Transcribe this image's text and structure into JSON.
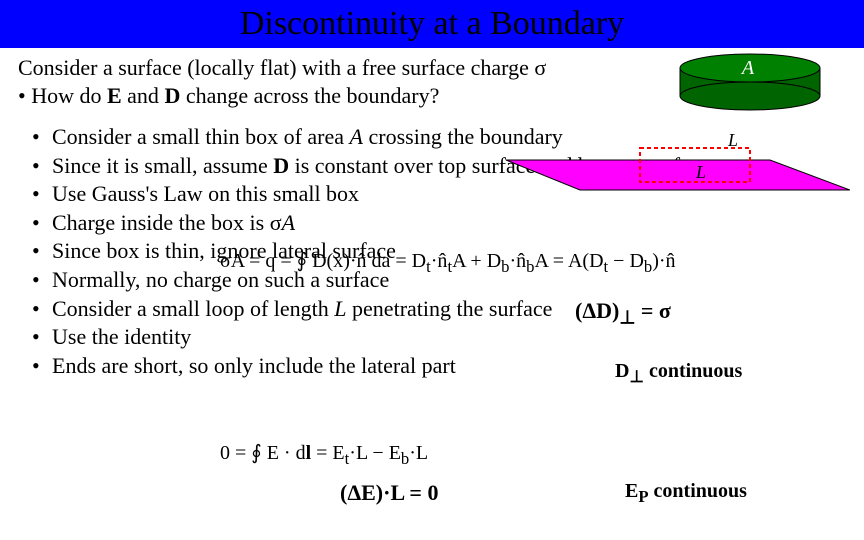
{
  "title": "Discontinuity at a Boundary",
  "title_bg": "#0000ff",
  "intro_line1_a": "Consider a surface (locally flat) with a free surface charge ",
  "intro_line1_sigma": "σ",
  "intro_line2_bullet": "•  How do ",
  "intro_line2_E": "E",
  "intro_line2_mid": "  and ",
  "intro_line2_D": "D",
  "intro_line2_end": " change across the boundary?",
  "bullets": [
    "Consider a small thin box of area <i>A</i> crossing the boundary",
    "Since it is small, assume <b>D</b> is constant over top surface and bottom surface",
    "Use Gauss's Law on this small box",
    "Charge inside the box is σ<i>A</i>",
    "Since box is thin, ignore lateral surface",
    "Normally, no charge on such a surface",
    "Consider a small loop of length <i>L</i> penetrating the surface",
    "Use the identity",
    "Ends are short, so only include the lateral part"
  ],
  "diagram": {
    "plane_fill": "#ff00ff",
    "plane_stroke": "#000000",
    "pillbox_top_fill": "#008000",
    "pillbox_side_fill": "#006400",
    "pillbox_stroke": "#000000",
    "loop_stroke": "#ff0000",
    "loop_dash": "4,3",
    "label_A": "A",
    "label_L_top": "L",
    "label_L_bot": "L",
    "label_color": "#000000",
    "label_A_color": "#ffffff"
  },
  "equations": {
    "gauss": "σA = q = ∮ D(x)·n̂ da = D<sub>t</sub>·n̂<sub>t</sub>A + D<sub>b</sub>·n̂<sub>b</sub>A = A(D<sub>t</sub> − D<sub>b</sub>)·n̂",
    "deltaD": "(ΔD)<sub>⊥</sub> = σ",
    "d_cont": "D<sub>⊥</sub> continuous",
    "loop_int": "0 = ∮ E · d<b>l</b> = E<sub>t</sub>·L − E<sub>b</sub>·L",
    "deltaE": "(ΔE)·L = 0",
    "ep_cont": "E<sub>P</sub> continuous"
  }
}
